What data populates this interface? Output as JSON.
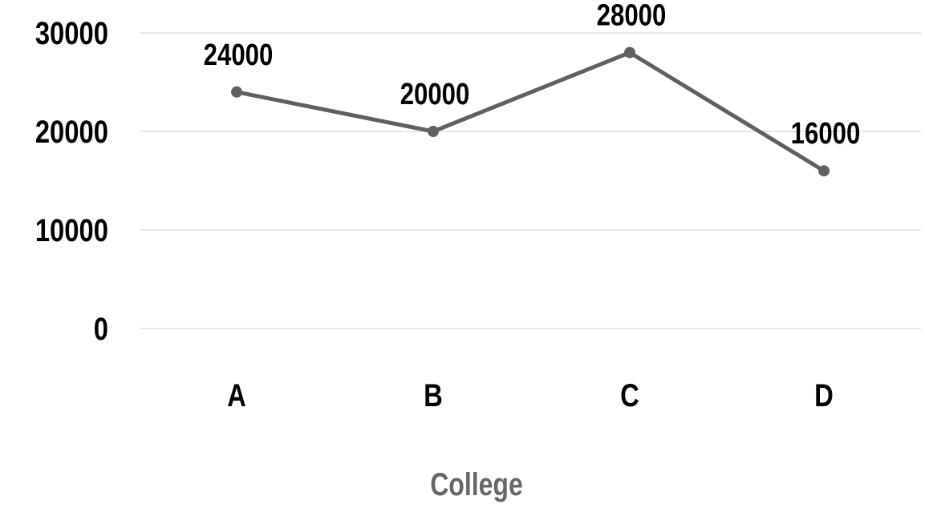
{
  "chart_data": {
    "type": "line",
    "categories": [
      "A",
      "B",
      "C",
      "D"
    ],
    "series": [
      {
        "values": [
          24000,
          20000,
          28000,
          16000
        ]
      }
    ],
    "data_labels": [
      "24000",
      "20000",
      "28000",
      "16000"
    ],
    "y_ticks": [
      0,
      10000,
      20000,
      30000
    ],
    "ylim": [
      0,
      30000
    ],
    "xlabel": "College",
    "ylabel": "",
    "title": "",
    "grid": true,
    "legend": "none",
    "colors": {
      "line": "#606060",
      "grid": "#e6e6e6",
      "axis_title": "#666666",
      "tick_text": "#000000"
    }
  }
}
